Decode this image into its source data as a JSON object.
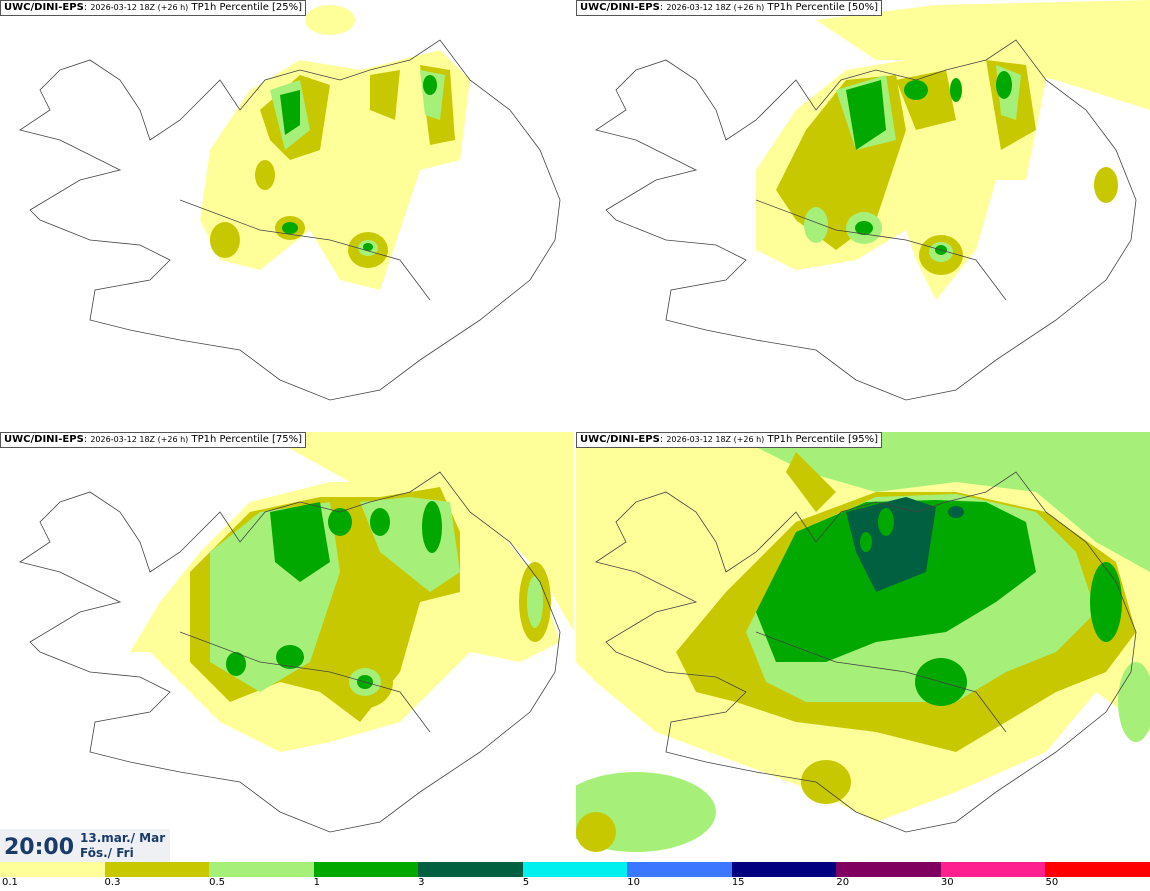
{
  "panels": [
    {
      "model": "UWC/DINI-EPS",
      "run": "2026-03-12 18Z (+26 h)",
      "field": "TP1h Percentile [25%]"
    },
    {
      "model": "UWC/DINI-EPS",
      "run": "2026-03-12 18Z (+26 h)",
      "field": "TP1h Percentile [50%]"
    },
    {
      "model": "UWC/DINI-EPS",
      "run": "2026-03-12 18Z (+26 h)",
      "field": "TP1h Percentile [75%]"
    },
    {
      "model": "UWC/DINI-EPS",
      "run": "2026-03-12 18Z (+26 h)",
      "field": "TP1h Percentile [95%]"
    }
  ],
  "valid_time": {
    "time": "20:00",
    "date": "13.mar./ Mar",
    "day": "Fös./ Fri"
  },
  "legend": {
    "colors": [
      "#ffff99",
      "#c8c800",
      "#a6f07a",
      "#00a800",
      "#006040",
      "#00f0f0",
      "#3c78ff",
      "#000080",
      "#800060",
      "#ff2090",
      "#ff0000"
    ],
    "ticks": [
      "0.1",
      "0.3",
      "0.5",
      "1",
      "3",
      "5",
      "10",
      "15",
      "20",
      "30",
      "50"
    ]
  }
}
